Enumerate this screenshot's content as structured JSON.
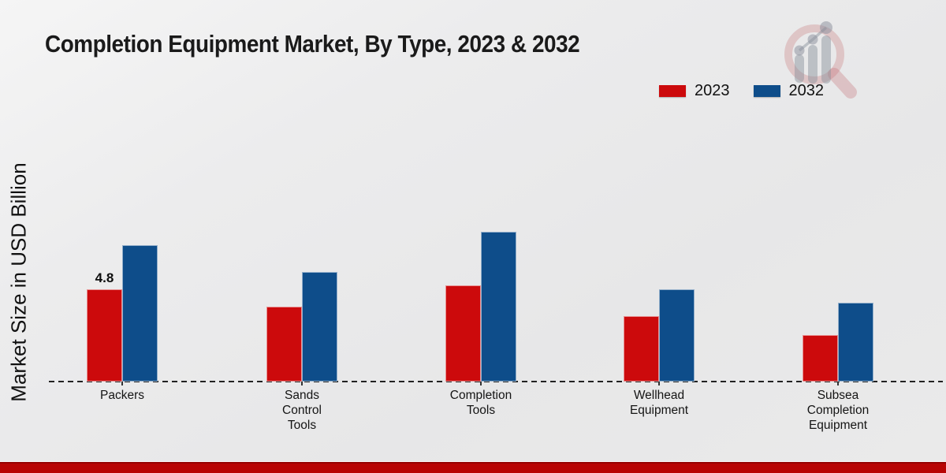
{
  "title": "Completion Equipment Market, By Type, 2023 & 2032",
  "ylabel": "Market Size in USD Billion",
  "legend": [
    {
      "label": "2023",
      "color": "#cc0a0c"
    },
    {
      "label": "2032",
      "color": "#0e4d8a"
    }
  ],
  "footer": {
    "band_color": "#b80404"
  },
  "watermark": {
    "icon": "magnifier-growth-chart-logo"
  },
  "chart_data": {
    "type": "bar",
    "title": "Completion Equipment Market, By Type, 2023 & 2032",
    "xlabel": "",
    "ylabel": "Market Size in USD Billion",
    "categories": [
      "Packers",
      "Sands Control Tools",
      "Completion Tools",
      "Wellhead Equipment",
      "Subsea Completion Equipment"
    ],
    "category_label_lines": [
      [
        "Packers"
      ],
      [
        "Sands",
        "Control",
        "Tools"
      ],
      [
        "Completion",
        "Tools"
      ],
      [
        "Wellhead",
        "Equipment"
      ],
      [
        "Subsea",
        "Completion",
        "Equipment"
      ]
    ],
    "series": [
      {
        "name": "2023",
        "color": "#cc0a0c",
        "values": [
          4.8,
          3.9,
          5.0,
          3.4,
          2.4
        ],
        "point_labels": [
          "4.8",
          "",
          "",
          "",
          ""
        ]
      },
      {
        "name": "2032",
        "color": "#0e4d8a",
        "values": [
          7.1,
          5.7,
          7.8,
          4.8,
          4.1
        ],
        "point_labels": [
          "",
          "",
          "",
          "",
          ""
        ]
      }
    ],
    "ylim": [
      0,
      8.5
    ],
    "grid": false,
    "y_axis_ticks_visible": false,
    "legend_position": "top-right",
    "baseline_style": "dashed"
  }
}
